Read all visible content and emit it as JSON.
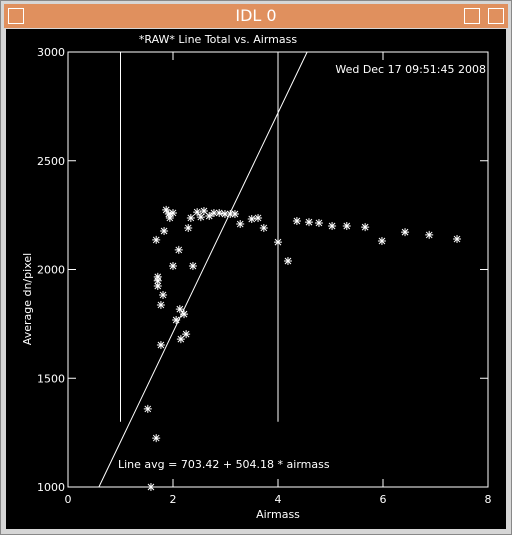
{
  "window": {
    "title": "IDL 0"
  },
  "chart_data": {
    "type": "scatter",
    "title": "*RAW* Line Total vs. Airmass",
    "timestamp": "Wed Dec 17 09:51:45 2008",
    "x_label": "Airmass",
    "y_label": "Average dn/pixel",
    "annotation": "Line avg = 703.42 + 504.18 * airmass",
    "fit": {
      "intercept": 703.42,
      "slope": 504.18
    },
    "vlines": [
      1,
      4
    ],
    "vline_ymin": 1300,
    "xlim": [
      0,
      8
    ],
    "xticks": [
      0,
      2,
      4,
      6,
      8
    ],
    "ylim": [
      1000,
      3000
    ],
    "yticks": [
      1000,
      1500,
      2000,
      2500,
      3000
    ],
    "color": "#ffffff",
    "x": [
      1.52,
      1.68,
      1.58,
      1.68,
      1.71,
      1.71,
      1.71,
      1.77,
      1.81,
      1.77,
      1.83,
      1.87,
      1.92,
      1.94,
      2.0,
      2.0,
      2.06,
      2.11,
      2.13,
      2.15,
      2.21,
      2.25,
      2.29,
      2.34,
      2.38,
      2.46,
      2.53,
      2.59,
      2.69,
      2.78,
      2.88,
      2.99,
      3.09,
      3.18,
      3.28,
      3.5,
      3.62,
      3.73,
      4.0,
      4.19,
      4.36,
      4.59,
      4.78,
      5.03,
      5.31,
      5.66,
      5.98,
      6.42,
      6.88,
      7.41
    ],
    "values": [
      1359,
      1225,
      1000,
      2136,
      1966,
      1948,
      1924,
      1837,
      1883,
      1653,
      2177,
      2274,
      2255,
      2237,
      2260,
      2016,
      1768,
      2090,
      1818,
      1680,
      1795,
      1703,
      2191,
      2237,
      2016,
      2264,
      2241,
      2269,
      2246,
      2260,
      2260,
      2255,
      2255,
      2255,
      2209,
      2232,
      2237,
      2191,
      2126,
      2039,
      2223,
      2218,
      2214,
      2200,
      2200,
      2195,
      2131,
      2172,
      2159,
      2140
    ]
  }
}
